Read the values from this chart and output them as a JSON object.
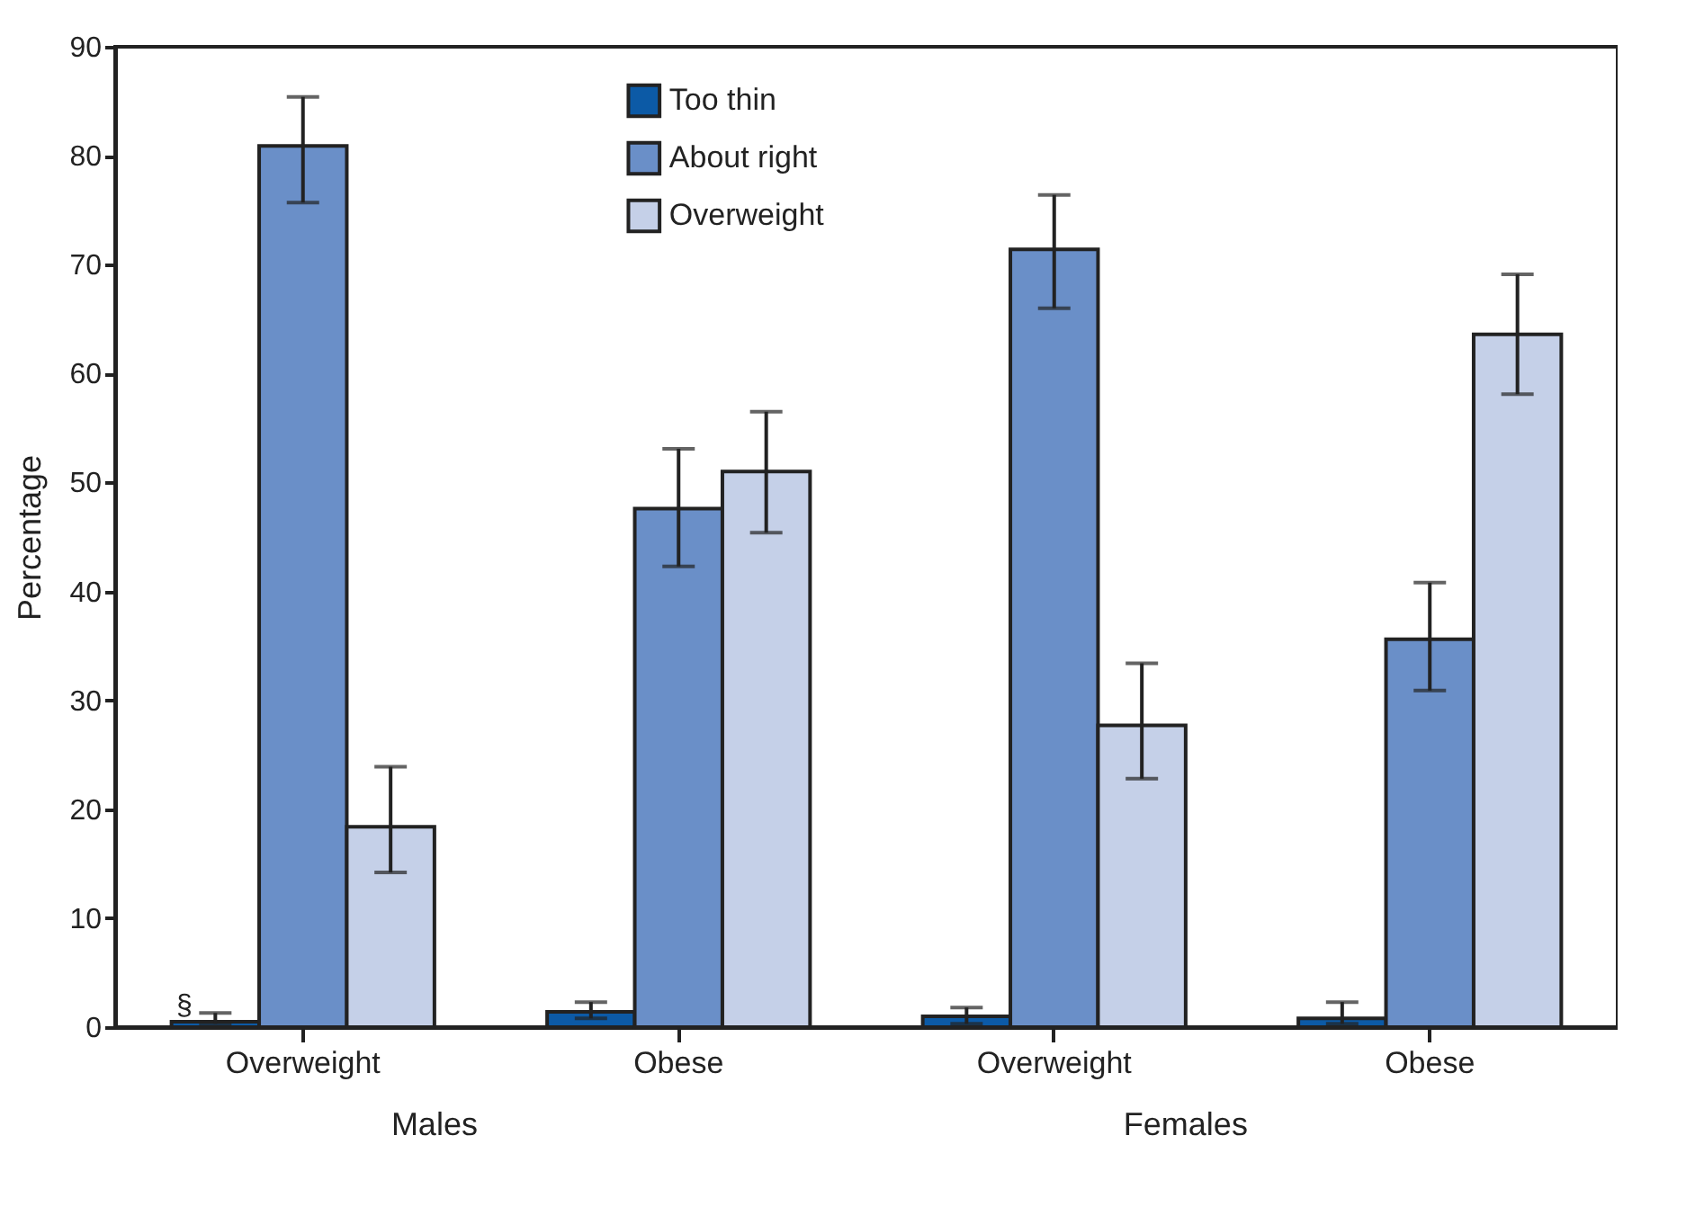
{
  "chart_data": {
    "type": "bar",
    "categories": [
      "Overweight",
      "Obese",
      "Overweight",
      "Obese"
    ],
    "ylabel": "Percentage",
    "ylim": [
      0,
      90
    ],
    "yticks": [
      0,
      10,
      20,
      30,
      40,
      50,
      60,
      70,
      80,
      90
    ],
    "grid": false,
    "legend": "top",
    "series": [
      {
        "name": "Too thin",
        "color": "#0c5aa6",
        "values": [
          0.5,
          1.4,
          1.0,
          0.8
        ],
        "errors": [
          [
            0.3,
            1.3
          ],
          [
            0.8,
            2.3
          ],
          [
            0.3,
            1.8
          ],
          [
            0.3,
            2.3
          ]
        ]
      },
      {
        "name": "About right",
        "color": "#6a8fc8",
        "values": [
          80.9,
          47.6,
          71.4,
          35.6
        ],
        "errors": [
          [
            75.7,
            85.4
          ],
          [
            42.3,
            53.1
          ],
          [
            66.0,
            76.4
          ],
          [
            30.9,
            40.8
          ]
        ]
      },
      {
        "name": "Overweight",
        "color": "#c5d0e8",
        "values": [
          18.4,
          51.0,
          27.7,
          63.6
        ],
        "errors": [
          [
            14.2,
            23.9
          ],
          [
            45.4,
            56.5
          ],
          [
            22.8,
            33.4
          ],
          [
            58.1,
            69.1
          ]
        ]
      }
    ],
    "annotations": [
      "§",
      "Males",
      "Females"
    ]
  }
}
